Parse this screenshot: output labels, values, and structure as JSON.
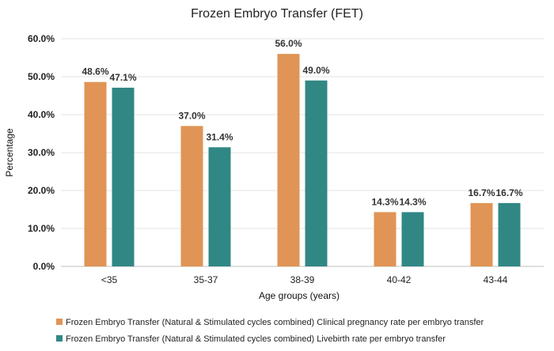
{
  "chart_data": {
    "type": "bar",
    "title": "Frozen Embryo Transfer (FET)",
    "xlabel": "Age groups (years)",
    "ylabel": "Percentage",
    "categories": [
      "<35",
      "35-37",
      "38-39",
      "40-42",
      "43-44"
    ],
    "ylim": [
      0,
      60
    ],
    "y_ticks": [
      "0.0%",
      "10.0%",
      "20.0%",
      "30.0%",
      "40.0%",
      "50.0%",
      "60.0%"
    ],
    "grid": true,
    "legend_position": "bottom",
    "series": [
      {
        "name": "Frozen Embryo Transfer (Natural & Stimulated cycles combined) Clinical pregnancy rate per embryo transfer",
        "color": "#E09455",
        "values": [
          48.6,
          37.0,
          56.0,
          14.3,
          16.7
        ],
        "labels": [
          "48.6%",
          "37.0%",
          "56.0%",
          "14.3%",
          "16.7%"
        ]
      },
      {
        "name": "Frozen Embryo Transfer (Natural & Stimulated cycles combined) Livebirth rate per embryo transfer",
        "color": "#318784",
        "values": [
          47.1,
          31.4,
          49.0,
          14.3,
          16.7
        ],
        "labels": [
          "47.1%",
          "31.4%",
          "49.0%",
          "14.3%",
          "16.7%"
        ]
      }
    ]
  }
}
